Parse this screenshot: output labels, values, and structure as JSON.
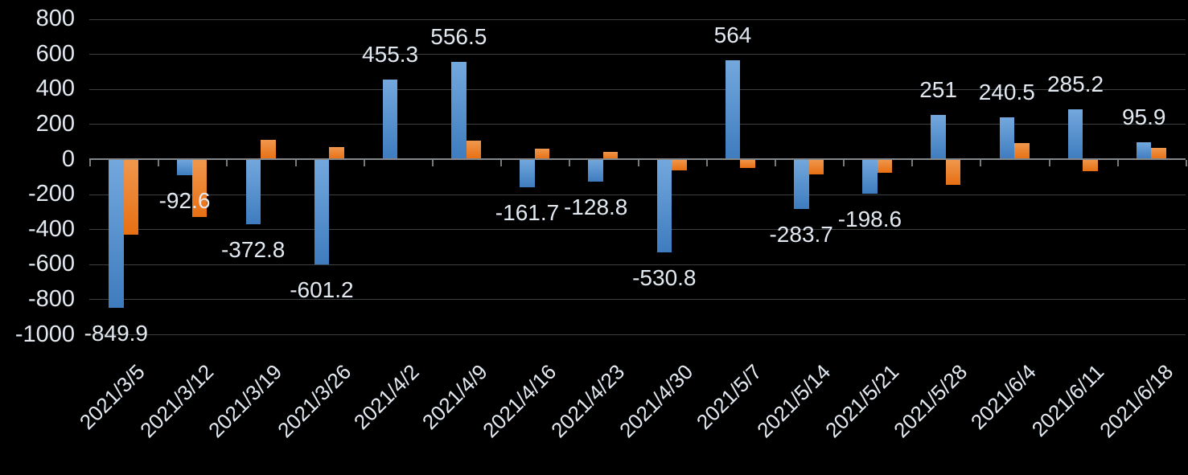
{
  "chart_data": {
    "type": "bar",
    "title": "",
    "background": "#000000",
    "grid": true,
    "legend": "none",
    "ylim": [
      -1000,
      800
    ],
    "ytick_step": 200,
    "ytick_labels": [
      "800",
      "600",
      "400",
      "200",
      "0",
      "-200",
      "-400",
      "-600",
      "-800",
      "-1000"
    ],
    "categories": [
      "2021/3/5",
      "2021/3/12",
      "2021/3/19",
      "2021/3/26",
      "2021/4/2",
      "2021/4/9",
      "2021/4/16",
      "2021/4/23",
      "2021/4/30",
      "2021/5/7",
      "2021/5/14",
      "2021/5/21",
      "2021/5/28",
      "2021/6/4",
      "2021/6/11",
      "2021/6/18"
    ],
    "series": [
      {
        "name": "blue-series",
        "color_top": "#73A8DD",
        "color_bottom": "#3E7CBF",
        "values": [
          -849.9,
          -92.6,
          -372.8,
          -601.2,
          455.3,
          556.5,
          -161.7,
          -128.8,
          -530.8,
          564,
          -283.7,
          -198.6,
          251,
          240.5,
          285.2,
          95.9
        ],
        "data_labels": [
          "-849.9",
          "-92.6",
          "-372.8",
          "-601.2",
          "455.3",
          "556.5",
          "-161.7",
          "-128.8",
          "-530.8",
          "564",
          "-283.7",
          "-198.6",
          "251",
          "240.5",
          "285.2",
          "95.9"
        ]
      },
      {
        "name": "orange-series",
        "color_top": "#F0984E",
        "color_bottom": "#E76F13",
        "values": [
          -430,
          -330,
          110,
          70,
          7,
          105,
          60,
          40,
          -65,
          -50,
          -85,
          -80,
          -145,
          90,
          -70,
          65
        ],
        "data_labels": null
      }
    ],
    "colors": {
      "gridline": "#3D4043",
      "axis_line": "#85888B",
      "tick": "#76797C",
      "text": "#E3E9F1"
    }
  }
}
